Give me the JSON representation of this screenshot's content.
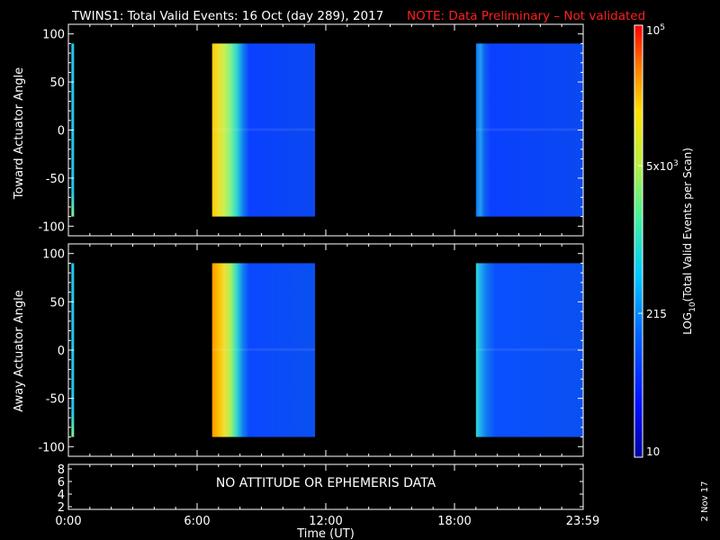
{
  "title": "TWINS1: Total Valid Events: 16 Oct (day 289), 2017",
  "note": "NOTE: Data Preliminary – Not validated",
  "date_stamp": "2 Nov 17",
  "chart_data": [
    {
      "type": "heatmap",
      "name": "toward",
      "ylabel": "Toward Actuator Angle",
      "ylim": [
        -110,
        110
      ],
      "yticks": [
        100,
        50,
        0,
        -50,
        -100
      ],
      "xlim": [
        0,
        24
      ],
      "blocks": [
        {
          "x0": 0.14,
          "x1": 0.24,
          "y0": -90,
          "y1": 90,
          "level": 0.45
        },
        {
          "x0": 6.7,
          "x1": 11.5,
          "y0": -90,
          "y1": 90,
          "level": 0.8
        },
        {
          "x0": 19.0,
          "x1": 23.98,
          "y0": -90,
          "y1": 90,
          "level": 0.25
        }
      ]
    },
    {
      "type": "heatmap",
      "name": "away",
      "ylabel": "Away Actuator Angle",
      "ylim": [
        -110,
        110
      ],
      "yticks": [
        100,
        50,
        0,
        -50,
        -100
      ],
      "xlim": [
        0,
        24
      ],
      "blocks": [
        {
          "x0": 0.14,
          "x1": 0.24,
          "y0": -90,
          "y1": 90,
          "level": 0.5
        },
        {
          "x0": 6.7,
          "x1": 11.5,
          "y0": -90,
          "y1": 90,
          "level": 0.85
        },
        {
          "x0": 19.0,
          "x1": 23.98,
          "y0": -90,
          "y1": 90,
          "level": 0.3
        }
      ]
    },
    {
      "type": "line",
      "name": "attitude",
      "yticks": [
        "8",
        "6",
        "4",
        "2"
      ],
      "message": "NO ATTITUDE OR EPHEMERIS DATA",
      "xlabel": "Time (UT)",
      "xticks": [
        "0:00",
        "6:00",
        "12:00",
        "18:00",
        "23:59"
      ],
      "xtick_values": [
        0,
        6,
        12,
        18,
        23.98
      ]
    }
  ],
  "colorbar": {
    "label": "LOG",
    "label_sub": "10",
    "label_rest": "(Total Valid Events per Scan)",
    "ticks": [
      {
        "base": "10",
        "exp": "5",
        "value": 100000
      },
      {
        "base": "5x10",
        "exp": "3",
        "value": 5000
      },
      {
        "base": "215",
        "exp": "",
        "value": 215
      },
      {
        "base": "10",
        "exp": "",
        "value": 10
      }
    ],
    "min": 10,
    "max": 100000
  },
  "colors": {
    "background": "#000000",
    "axes": "#ffffff",
    "note": "#ff2020"
  }
}
